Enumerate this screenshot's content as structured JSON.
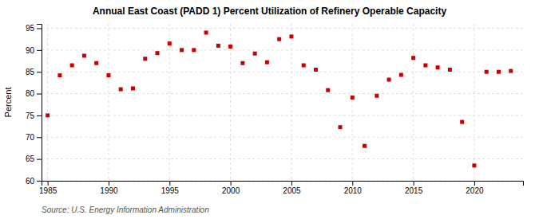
{
  "chart_data": {
    "type": "scatter",
    "title": "Annual East Coast (PADD 1) Percent Utilization of Refinery Operable Capacity",
    "ylabel": "Percent",
    "source": "Source: U.S. Energy Information Administration",
    "x": [
      1985,
      1986,
      1987,
      1988,
      1989,
      1990,
      1991,
      1992,
      1993,
      1994,
      1995,
      1996,
      1997,
      1998,
      1999,
      2000,
      2001,
      2002,
      2003,
      2004,
      2005,
      2006,
      2007,
      2008,
      2009,
      2010,
      2011,
      2012,
      2013,
      2014,
      2015,
      2016,
      2017,
      2018,
      2019,
      2020,
      2021,
      2022,
      2023
    ],
    "values": [
      75.0,
      84.2,
      86.5,
      88.7,
      87.0,
      84.2,
      81.0,
      81.2,
      88.0,
      89.3,
      91.5,
      90.0,
      90.0,
      94.0,
      91.0,
      90.8,
      87.0,
      89.2,
      87.2,
      92.5,
      93.1,
      86.5,
      85.5,
      80.8,
      72.3,
      79.1,
      68.0,
      79.5,
      83.2,
      84.3,
      88.2,
      86.5,
      86.0,
      85.5,
      73.5,
      63.5,
      85.0,
      85.0,
      85.2
    ],
    "color": "#cc0000",
    "marker": "square",
    "xlim": [
      1984.5,
      2024
    ],
    "ylim": [
      60,
      96
    ],
    "xticks": [
      1985,
      1990,
      1995,
      2000,
      2005,
      2010,
      2015,
      2020
    ],
    "yticks": [
      60,
      65,
      70,
      75,
      80,
      85,
      90,
      95
    ],
    "grid": true
  }
}
